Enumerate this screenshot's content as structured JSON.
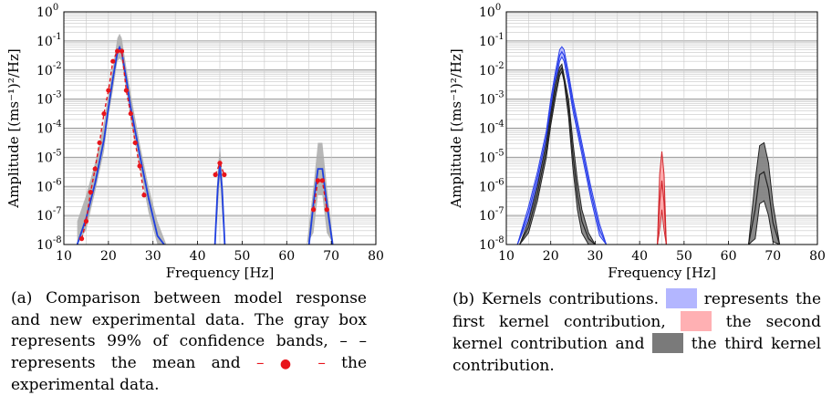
{
  "chart_data": [
    {
      "type": "line",
      "xlabel": "Frequency [Hz]",
      "ylabel": "Amplitude [(ms⁻¹)²/Hz]",
      "x_ticks": [
        "10",
        "20",
        "30",
        "40",
        "50",
        "60",
        "70",
        "80"
      ],
      "y_ticks": [
        "10^0",
        "10^-1",
        "10^-2",
        "10^-3",
        "10^-4",
        "10^-5",
        "10^-6",
        "10^-7",
        "10^-8"
      ],
      "xlim": [
        10,
        80
      ],
      "ylim_log10": [
        -8,
        0
      ],
      "log_y": true,
      "grid": true,
      "series": [
        {
          "role": "confidence band (99%)",
          "color": "#aaaaaa",
          "x": [
            13,
            15,
            17,
            19,
            20,
            21,
            22,
            22.5,
            23,
            24,
            25,
            27,
            29,
            31,
            33
          ],
          "upper": [
            -7.2,
            -6.3,
            -5.2,
            -3.8,
            -2.8,
            -1.9,
            -0.9,
            -0.75,
            -0.9,
            -1.9,
            -2.8,
            -4.5,
            -6.0,
            -7.2,
            -8.0
          ],
          "lower": [
            -8.0,
            -7.5,
            -6.2,
            -4.8,
            -3.6,
            -2.7,
            -1.7,
            -1.6,
            -1.7,
            -2.7,
            -3.7,
            -5.3,
            -6.9,
            -8.0,
            -8.0
          ]
        },
        {
          "role": "confidence band (99%)",
          "color": "#aaaaaa",
          "x": [
            43.8,
            44.5,
            45,
            45.5,
            46.2
          ],
          "upper": [
            -8.0,
            -5.5,
            -4.6,
            -5.5,
            -8.0
          ],
          "lower": [
            -8.0,
            -7.0,
            -5.6,
            -7.0,
            -8.0
          ]
        },
        {
          "role": "confidence band (99%)",
          "color": "#aaaaaa",
          "x": [
            64.5,
            66,
            67,
            68,
            69,
            70.5
          ],
          "upper": [
            -8.0,
            -6.0,
            -4.5,
            -4.5,
            -6.0,
            -8.0
          ],
          "lower": [
            -8.0,
            -7.6,
            -6.3,
            -6.3,
            -7.6,
            -8.0
          ]
        },
        {
          "role": "mean",
          "color": "#1f3fe0",
          "x": [
            13,
            15,
            17,
            19,
            20,
            21,
            22,
            22.5,
            23,
            24,
            25,
            27,
            29,
            31,
            32.5,
            43.9,
            44.5,
            45,
            45.5,
            46.1,
            65,
            66,
            67,
            68,
            69,
            70.3
          ],
          "log10_y": [
            -8.0,
            -7.1,
            -5.9,
            -4.4,
            -3.3,
            -2.3,
            -1.4,
            -1.22,
            -1.4,
            -2.3,
            -3.3,
            -4.9,
            -6.4,
            -7.7,
            -8.0,
            -8.0,
            -6.1,
            -5.25,
            -6.1,
            -8.0,
            -8.0,
            -6.6,
            -5.4,
            -5.4,
            -6.6,
            -8.0
          ]
        },
        {
          "role": "experimental data",
          "color": "#e8141b",
          "x": [
            14,
            15,
            16,
            17,
            18,
            19,
            20,
            21,
            22,
            23,
            24,
            25,
            26,
            27,
            28,
            44,
            45,
            46,
            66,
            67,
            68,
            69
          ],
          "log10_y": [
            -7.8,
            -7.2,
            -6.2,
            -5.4,
            -4.5,
            -3.5,
            -2.7,
            -1.7,
            -1.35,
            -1.35,
            -2.7,
            -3.5,
            -4.5,
            -5.3,
            -6.3,
            -5.6,
            -5.2,
            -5.6,
            -6.8,
            -5.8,
            -5.8,
            -6.8
          ]
        }
      ]
    },
    {
      "type": "line",
      "xlabel": "Frequency [Hz]",
      "ylabel": "Amplitude [(ms⁻¹)²/Hz]",
      "x_ticks": [
        "10",
        "20",
        "30",
        "40",
        "50",
        "60",
        "70",
        "80"
      ],
      "y_ticks": [
        "10^0",
        "10^-1",
        "10^-2",
        "10^-3",
        "10^-4",
        "10^-5",
        "10^-6",
        "10^-7",
        "10^-8"
      ],
      "xlim": [
        10,
        80
      ],
      "ylim_log10": [
        -8,
        0
      ],
      "log_y": true,
      "grid": true,
      "series": [
        {
          "role": "first kernel contribution",
          "color": "#2a3fe8",
          "fill": "#b0b4ff",
          "x": [
            12.5,
            15,
            17,
            19,
            20,
            21,
            22,
            22.5,
            23,
            24,
            25,
            27,
            29,
            31,
            32.5
          ],
          "upper": [
            -8.0,
            -6.7,
            -5.5,
            -4.1,
            -3.0,
            -2.1,
            -1.3,
            -1.2,
            -1.3,
            -2.1,
            -3.0,
            -4.5,
            -6.0,
            -7.3,
            -8.0
          ],
          "lower": [
            -8.0,
            -7.1,
            -5.9,
            -4.5,
            -3.4,
            -2.5,
            -1.7,
            -1.55,
            -1.7,
            -2.5,
            -3.4,
            -4.9,
            -6.4,
            -7.7,
            -8.0
          ]
        },
        {
          "role": "second kernel contribution",
          "color": "#d0252b",
          "fill": "#ff9da0",
          "x": [
            44,
            44.5,
            45,
            45.5,
            46
          ],
          "upper": [
            -8.0,
            -5.6,
            -4.8,
            -5.6,
            -8.0
          ],
          "lower": [
            -8.0,
            -7.5,
            -6.8,
            -7.5,
            -8.0
          ]
        },
        {
          "role": "third kernel contribution",
          "color": "#222222",
          "fill": "#777777",
          "x": [
            13,
            15,
            17,
            19,
            20,
            21,
            22,
            22.5,
            23,
            24,
            25,
            26,
            27,
            28.5,
            30
          ],
          "upper": [
            -8.0,
            -7.2,
            -6.0,
            -4.5,
            -3.5,
            -2.5,
            -1.9,
            -1.8,
            -2.2,
            -3.0,
            -4.5,
            -5.8,
            -6.8,
            -7.6,
            -8.0
          ],
          "lower": [
            -8.0,
            -7.6,
            -6.5,
            -5.0,
            -3.9,
            -3.0,
            -2.2,
            -2.05,
            -2.4,
            -3.6,
            -5.4,
            -6.8,
            -7.6,
            -8.0,
            -8.0
          ]
        },
        {
          "role": "third kernel contribution",
          "color": "#222222",
          "fill": "#777777",
          "x": [
            64.5,
            66,
            67,
            68,
            69,
            70,
            71.5
          ],
          "upper": [
            -8.0,
            -5.8,
            -4.6,
            -4.5,
            -5.2,
            -6.6,
            -8.0
          ],
          "lower": [
            -8.0,
            -7.8,
            -6.6,
            -6.5,
            -7.0,
            -7.9,
            -8.0
          ]
        }
      ]
    }
  ],
  "caption_a": {
    "label": "(a)",
    "text1": "Comparison between model response and new experimental data. The gray box represents 99% of confidence bands,",
    "dash_mean": "– –",
    "text2": "represents the mean and",
    "dot_prefix": "–",
    "dot_suffix": "–",
    "text3": "the experimental data."
  },
  "caption_b": {
    "label": "(b)",
    "text1": "Kernels contributions.",
    "text2": "represents the first kernel contribution,",
    "text3": "the second kernel contribution and",
    "text4": "the third kernel contribution.",
    "swatch_colors": [
      "#b3b6ff",
      "#ffb0b3",
      "#7a7a7a"
    ]
  }
}
